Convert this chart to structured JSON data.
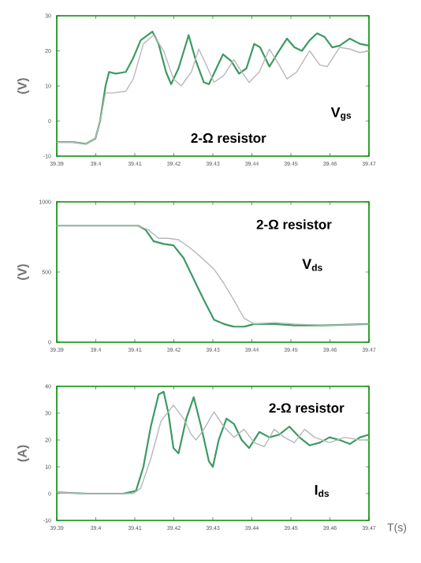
{
  "chart_data": [
    {
      "type": "line",
      "ylabel": "(V)",
      "xlim": [
        39.39,
        39.47
      ],
      "ylim": [
        -10,
        30
      ],
      "xticks": [
        39.39,
        39.4,
        39.41,
        39.42,
        39.43,
        39.44,
        39.45,
        39.46,
        39.47
      ],
      "yticks": [
        -10,
        0,
        10,
        20,
        30
      ],
      "annotations": [
        "V$_{gs}$",
        "2-Ω  resistor"
      ],
      "series": [
        {
          "color": "#3c9a64",
          "x": [
            39.39,
            39.3941,
            39.3974,
            39.3999,
            39.4011,
            39.4025,
            39.4034,
            39.4051,
            39.4077,
            39.4096,
            39.4115,
            39.4145,
            39.4161,
            39.418,
            39.4193,
            39.4212,
            39.4238,
            39.4257,
            39.4277,
            39.429,
            39.4309,
            39.4326,
            39.4348,
            39.4367,
            39.4386,
            39.4406,
            39.4421,
            39.4445,
            39.4464,
            39.449,
            39.4509,
            39.4528,
            39.4548,
            39.4567,
            39.4586,
            39.4606,
            39.4625,
            39.4651,
            39.4677,
            39.47
          ],
          "values": [
            -6,
            -6,
            -6.5,
            -5,
            0,
            10,
            14,
            13.5,
            14,
            18,
            23,
            25.5,
            22,
            14,
            10.5,
            15,
            24.5,
            17,
            11,
            10.5,
            15,
            19,
            17,
            13.5,
            15,
            22,
            21,
            15.5,
            19,
            23.5,
            21,
            20,
            23,
            25,
            24,
            21,
            21.5,
            23.5,
            22,
            21.5
          ]
        },
        {
          "color": "#b8b8b8",
          "x": [
            39.39,
            39.3941,
            39.3974,
            39.3999,
            39.4011,
            39.4025,
            39.4045,
            39.4077,
            39.4096,
            39.4122,
            39.4148,
            39.4174,
            39.4199,
            39.4219,
            39.4245,
            39.4264,
            39.4283,
            39.4303,
            39.4328,
            39.4354,
            39.4374,
            39.4393,
            39.4419,
            39.4445,
            39.447,
            39.449,
            39.4515,
            39.4548,
            39.4574,
            39.4593,
            39.4625,
            39.4651,
            39.4677,
            39.47
          ],
          "values": [
            -6,
            -6,
            -6.5,
            -5,
            0,
            8,
            8,
            8.5,
            12,
            22,
            24.5,
            20,
            12,
            10,
            14,
            20.5,
            16,
            11,
            13,
            17.5,
            14,
            11,
            14,
            20.5,
            16,
            12,
            14,
            20,
            16,
            15.5,
            21,
            20.5,
            19.5,
            20
          ]
        }
      ]
    },
    {
      "type": "line",
      "ylabel": "(V)",
      "xlim": [
        39.39,
        39.47
      ],
      "ylim": [
        0,
        1000
      ],
      "xticks": [
        39.39,
        39.4,
        39.41,
        39.42,
        39.43,
        39.44,
        39.45,
        39.46,
        39.47
      ],
      "yticks": [
        0,
        500,
        1000
      ],
      "annotations": [
        "2-Ω  resistor",
        "V$_{ds}$"
      ],
      "series": [
        {
          "color": "#3c9a64",
          "x": [
            39.39,
            39.398,
            39.4109,
            39.4128,
            39.4148,
            39.4174,
            39.4199,
            39.4225,
            39.4251,
            39.4277,
            39.4303,
            39.4328,
            39.4354,
            39.438,
            39.4406,
            39.4457,
            39.4509,
            39.4586,
            39.47
          ],
          "values": [
            830,
            830,
            830,
            800,
            720,
            700,
            690,
            600,
            450,
            300,
            160,
            130,
            110,
            110,
            130,
            130,
            120,
            120,
            130
          ]
        },
        {
          "color": "#b8b8b8",
          "x": [
            39.39,
            39.4109,
            39.4135,
            39.4161,
            39.4186,
            39.4212,
            39.4238,
            39.4264,
            39.4303,
            39.4328,
            39.4354,
            39.438,
            39.4406,
            39.4457,
            39.4509,
            39.4586,
            39.47
          ],
          "values": [
            830,
            830,
            800,
            740,
            740,
            730,
            680,
            620,
            520,
            420,
            300,
            170,
            130,
            140,
            130,
            120,
            130
          ]
        }
      ]
    },
    {
      "type": "line",
      "xlabel": "T(s)",
      "ylabel": "(A)",
      "xlim": [
        39.39,
        39.47
      ],
      "ylim": [
        -10,
        40
      ],
      "xticks": [
        39.39,
        39.4,
        39.41,
        39.42,
        39.43,
        39.44,
        39.45,
        39.46,
        39.47
      ],
      "yticks": [
        -10,
        0,
        10,
        20,
        30,
        40
      ],
      "annotations": [
        "2-Ω  resistor",
        "I$_{ds}$"
      ],
      "series": [
        {
          "color": "#3c9a64",
          "x": [
            39.39,
            39.398,
            39.407,
            39.4103,
            39.4122,
            39.4141,
            39.4161,
            39.4174,
            39.4186,
            39.4199,
            39.4212,
            39.4232,
            39.4251,
            39.427,
            39.429,
            39.43,
            39.4315,
            39.4335,
            39.4354,
            39.4374,
            39.4393,
            39.4419,
            39.4445,
            39.447,
            39.4496,
            39.4522,
            39.4548,
            39.4574,
            39.4599,
            39.4625,
            39.4651,
            39.4677,
            39.47
          ],
          "values": [
            0.5,
            0,
            0,
            1,
            10,
            25,
            37,
            38,
            30,
            17,
            15,
            28,
            36,
            25,
            12,
            10,
            20,
            28,
            26,
            20,
            17,
            23,
            21,
            22,
            25,
            21,
            18,
            19,
            21,
            20,
            18.5,
            21,
            22
          ]
        },
        {
          "color": "#b8b8b8",
          "x": [
            39.39,
            39.398,
            39.4096,
            39.4115,
            39.4141,
            39.4167,
            39.4199,
            39.4225,
            39.4245,
            39.4257,
            39.4277,
            39.4303,
            39.4328,
            39.4354,
            39.438,
            39.4406,
            39.4432,
            39.4457,
            39.4483,
            39.4509,
            39.4535,
            39.4561,
            39.4599,
            39.4638,
            39.4677,
            39.47
          ],
          "values": [
            0.5,
            0,
            0,
            2,
            13,
            27,
            33,
            28,
            22,
            20,
            24,
            30.5,
            25,
            21,
            24,
            19,
            17.5,
            24,
            21,
            19,
            24,
            21,
            19,
            21,
            20,
            20
          ]
        }
      ]
    }
  ]
}
